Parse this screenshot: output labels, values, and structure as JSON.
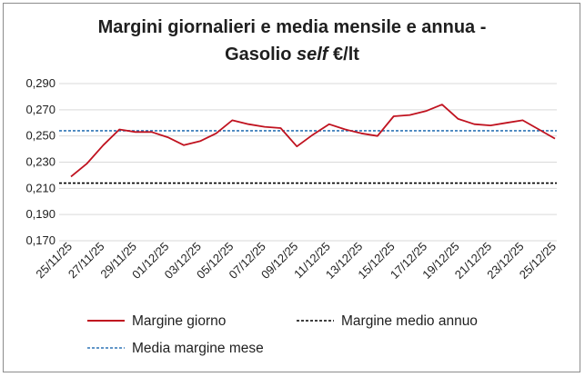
{
  "chart_data": {
    "type": "line",
    "title_line1": "Margini giornalieri e media mensile e annua -",
    "title_line2_prefix": "Gasolio ",
    "title_line2_italic": "self",
    "title_line2_suffix": " €/lt",
    "xlabel": "",
    "ylabel": "",
    "ylim": [
      0.17,
      0.29
    ],
    "yticks": [
      "0,290",
      "0,270",
      "0,250",
      "0,230",
      "0,210",
      "0,190",
      "0,170"
    ],
    "ytick_values": [
      0.29,
      0.27,
      0.25,
      0.23,
      0.21,
      0.19,
      0.17
    ],
    "xticks": [
      "25/11/25",
      "27/11/25",
      "29/11/25",
      "01/12/25",
      "03/12/25",
      "05/12/25",
      "07/12/25",
      "09/12/25",
      "11/12/25",
      "13/12/25",
      "15/12/25",
      "17/12/25",
      "19/12/25",
      "21/12/25",
      "23/12/25",
      "25/12/25"
    ],
    "grid": true,
    "legend_position": "bottom",
    "series": [
      {
        "name": "Margine giorno",
        "color": "#c0121f",
        "style": "solid",
        "values": [
          0.219,
          0.229,
          0.243,
          0.255,
          0.253,
          0.253,
          0.249,
          0.243,
          0.246,
          0.252,
          0.262,
          0.259,
          0.257,
          0.256,
          0.242,
          0.251,
          0.259,
          0.255,
          0.252,
          0.25,
          0.265,
          0.266,
          0.269,
          0.274,
          0.263,
          0.259,
          0.258,
          0.26,
          0.262,
          0.255,
          0.248
        ]
      },
      {
        "name": "Margine medio annuo",
        "color": "#000000",
        "style": "dashed",
        "value": 0.214
      },
      {
        "name": "Media margine mese",
        "color": "#2e75b6",
        "style": "dashed",
        "value": 0.254
      }
    ]
  }
}
